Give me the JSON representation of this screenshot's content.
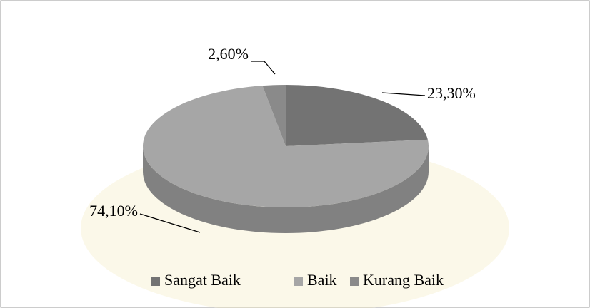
{
  "chart_data": {
    "type": "pie",
    "categories": [
      "Sangat Baik",
      "Baik",
      "Kurang Baik"
    ],
    "values": [
      23.3,
      74.1,
      2.6
    ],
    "value_labels": [
      "23,30%",
      "74,10%",
      "2,60%"
    ],
    "colors": [
      "#737373",
      "#a6a6a6",
      "#8a8a8a"
    ],
    "legend": "bottom"
  }
}
